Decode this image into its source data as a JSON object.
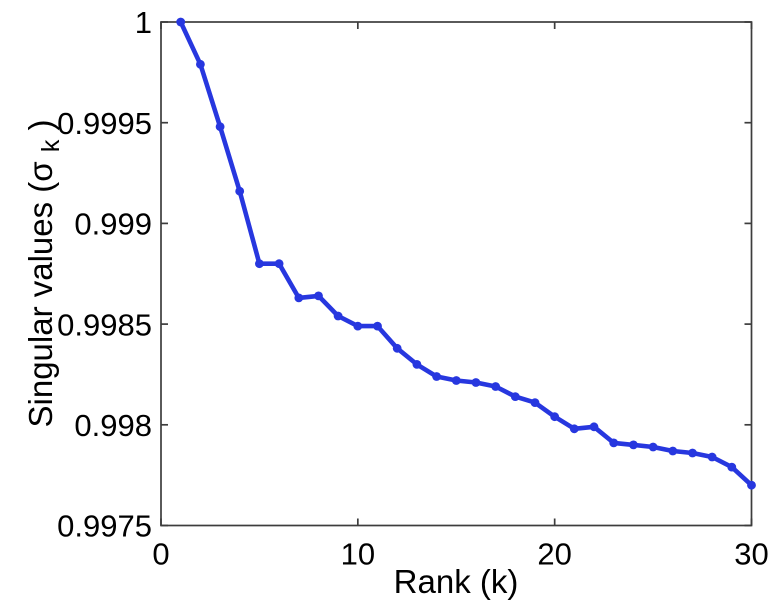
{
  "chart_data": {
    "type": "line",
    "title": "",
    "xlabel": "Rank (k)",
    "ylabel_main": "Singular values (σ",
    "ylabel_sub": "k",
    "ylabel_close": ")",
    "x": [
      1,
      2,
      3,
      4,
      5,
      6,
      7,
      8,
      9,
      10,
      11,
      12,
      13,
      14,
      15,
      16,
      17,
      18,
      19,
      20,
      21,
      22,
      23,
      24,
      25,
      26,
      27,
      28,
      29,
      30
    ],
    "series": [
      {
        "name": "singular-values",
        "values": [
          1.0,
          0.99979,
          0.99948,
          0.99916,
          0.9988,
          0.9988,
          0.99863,
          0.99864,
          0.99854,
          0.99849,
          0.99849,
          0.99838,
          0.9983,
          0.99824,
          0.99822,
          0.99821,
          0.99819,
          0.99814,
          0.99811,
          0.99804,
          0.99798,
          0.99799,
          0.99791,
          0.9979,
          0.99789,
          0.99787,
          0.99786,
          0.99784,
          0.99779,
          0.9977
        ]
      }
    ],
    "xlim": [
      0,
      30
    ],
    "ylim": [
      0.9975,
      1.0
    ],
    "xticks": [
      0,
      10,
      20,
      30
    ],
    "xtick_labels": [
      "0",
      "10",
      "20",
      "30"
    ],
    "yticks": [
      1.0,
      0.9995,
      0.999,
      0.9985,
      0.998,
      0.9975
    ],
    "ytick_labels": [
      "1",
      "0.9995",
      "0.999",
      "0.9985",
      "0.998",
      "0.9975"
    ],
    "grid": false,
    "legend": null,
    "box": true,
    "line_color": "#2737df",
    "marker": "dot",
    "marker_color": "#2737df",
    "axis_color": "#3d3d3d",
    "background_color": "#ffffff"
  }
}
